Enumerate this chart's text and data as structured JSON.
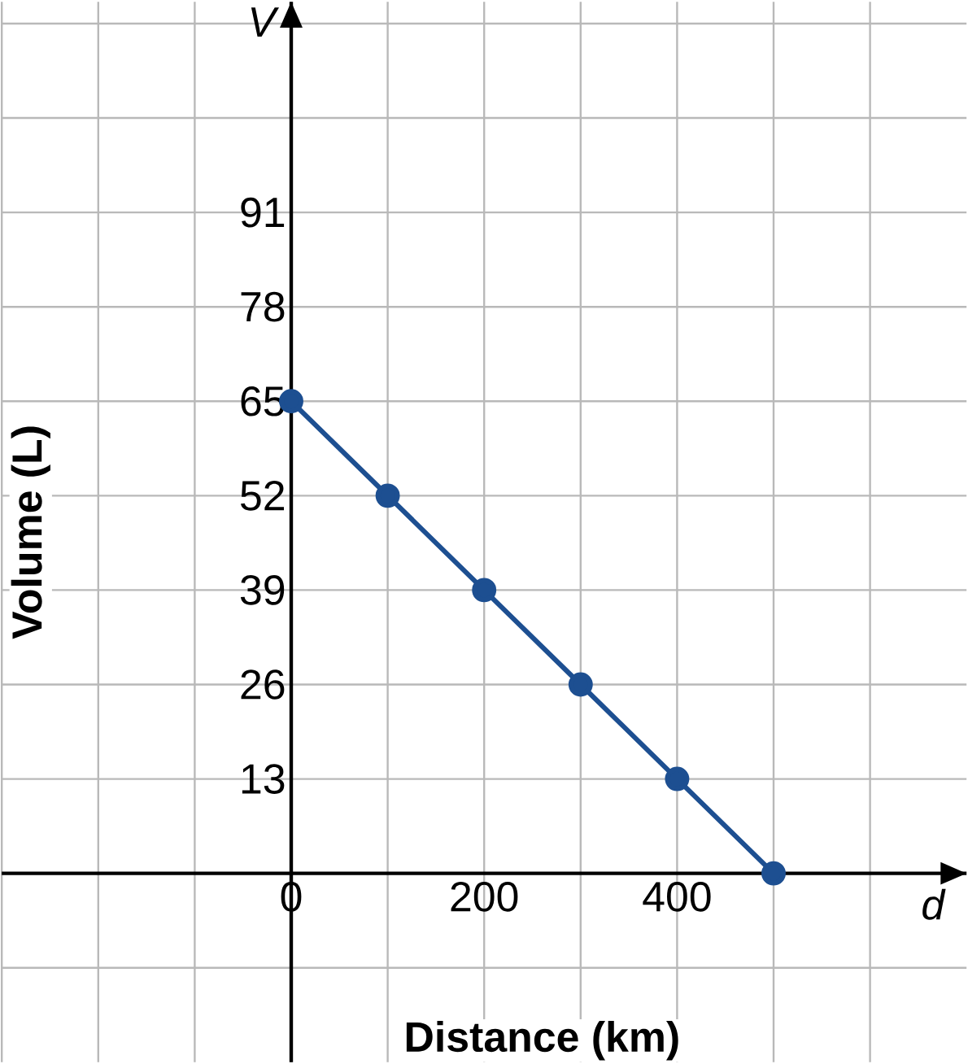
{
  "chart_data": {
    "type": "line",
    "xlabel": "Distance (km)",
    "ylabel": "Volume (L)",
    "annotations": [
      "V",
      "d"
    ],
    "x": [
      0,
      100,
      200,
      300,
      400,
      500
    ],
    "series": [
      {
        "color": "#1d4f91",
        "values": [
          65,
          52,
          39,
          26,
          13,
          0
        ]
      }
    ],
    "xlim": [
      -300,
      700
    ],
    "ylim": [
      -26,
      120
    ],
    "xticks": [
      {
        "value": -300,
        "label": null
      },
      {
        "value": -200,
        "label": null
      },
      {
        "value": -100,
        "label": null
      },
      0,
      {
        "value": 100,
        "label": null
      },
      200,
      {
        "value": 300,
        "label": null
      },
      400,
      {
        "value": 500,
        "label": null
      },
      {
        "value": 600,
        "label": null
      }
    ],
    "yticks": [
      {
        "value": -13,
        "label": null
      },
      13,
      26,
      39,
      52,
      65,
      78,
      91,
      {
        "value": 104,
        "label": null
      },
      {
        "value": 117,
        "label": null
      }
    ],
    "grid": true,
    "marker": "circle",
    "line_style": "solid"
  }
}
